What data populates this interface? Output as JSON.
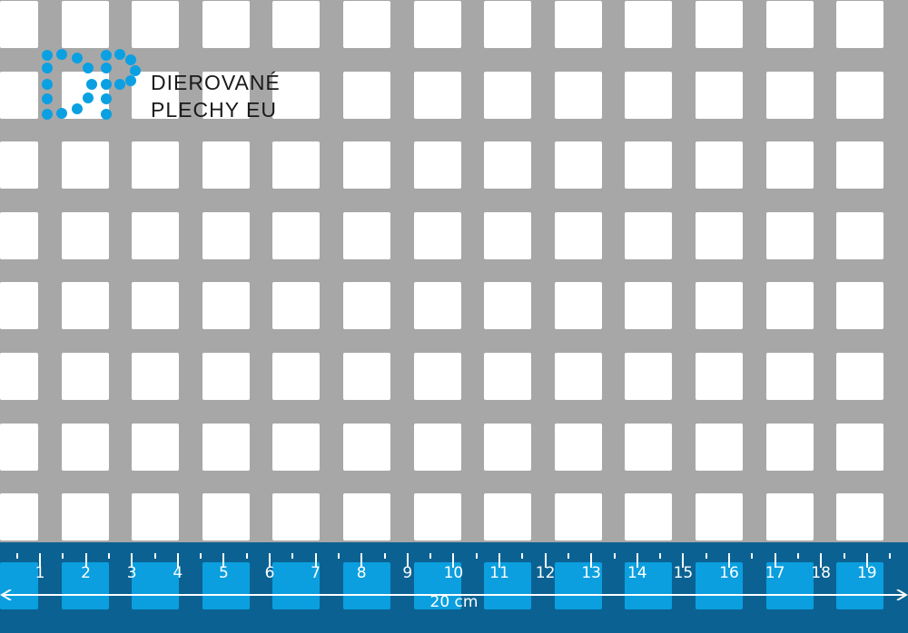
{
  "brand": {
    "line1": "DIEROVANÉ",
    "line2": "PLECHY EU",
    "logo_letters": "DP",
    "color": "#0ba0e2"
  },
  "ruler": {
    "numbers": [
      "1",
      "2",
      "3",
      "4",
      "5",
      "6",
      "7",
      "8",
      "9",
      "10",
      "11",
      "12",
      "13",
      "14",
      "15",
      "16",
      "17",
      "18",
      "19"
    ],
    "length_label": "20 cm",
    "band_color": "#0b6292",
    "hole_color": "#0b9fdf"
  },
  "sheet": {
    "metal_color": "#a7a7a7",
    "hole_shape": "square"
  }
}
